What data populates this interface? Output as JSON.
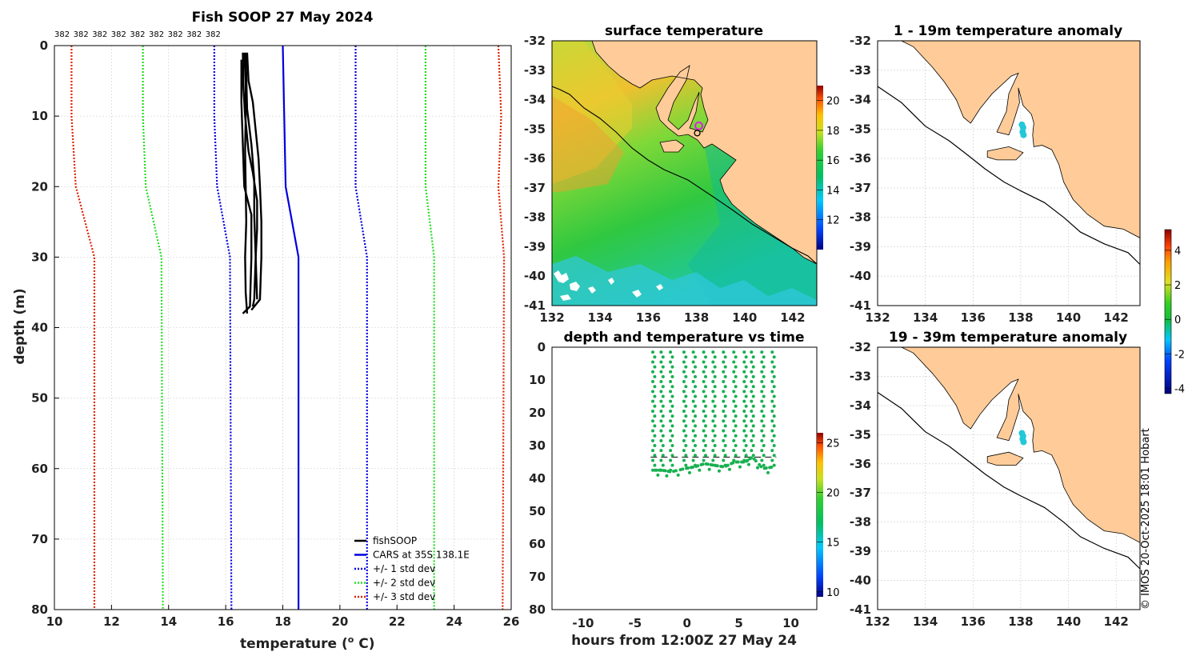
{
  "chart_data": [
    {
      "id": "profile",
      "type": "line",
      "title": "Fish SOOP 27 May 2024",
      "xlabel": "temperature (",
      "xlabel_sup": "o",
      "xlabel_end": " C)",
      "ylabel": "depth (m)",
      "xlim": [
        10,
        26
      ],
      "ylim": [
        0,
        80
      ],
      "xticks": [
        10,
        12,
        14,
        16,
        18,
        20,
        22,
        24,
        26
      ],
      "yticks": [
        0,
        10,
        20,
        30,
        40,
        50,
        60,
        70,
        80
      ],
      "top_labels": [
        "382",
        "382",
        "382",
        "382",
        "382",
        "382",
        "382",
        "382",
        "382"
      ],
      "legend": {
        "position": "bottom-right",
        "entries": [
          {
            "label": "fishSOOP",
            "color": "#000000",
            "style": "solid"
          },
          {
            "label": "CARS at 35S 138.1E",
            "color": "#0000dd",
            "style": "solid"
          },
          {
            "label": "+/- 1 std dev",
            "color": "#0000dd",
            "style": "dotted"
          },
          {
            "label": "+/- 2 std dev",
            "color": "#22dd22",
            "style": "dotted"
          },
          {
            "label": "+/- 3 std dev",
            "color": "#dd2200",
            "style": "dotted"
          }
        ]
      },
      "series": [
        {
          "name": "CARS mean",
          "color": "#0000dd",
          "dash": "",
          "depth": [
            0,
            10,
            20,
            30,
            80
          ],
          "temp": [
            18.0,
            18.05,
            18.1,
            18.55,
            18.55
          ]
        },
        {
          "name": "-1 std",
          "color": "#0000dd",
          "dash": "2,2",
          "depth": [
            0,
            10,
            20,
            30,
            80
          ],
          "temp": [
            15.6,
            15.6,
            15.7,
            16.15,
            16.2
          ]
        },
        {
          "name": "+1 std",
          "color": "#0000dd",
          "dash": "2,2",
          "depth": [
            0,
            10,
            20,
            30,
            80
          ],
          "temp": [
            20.55,
            20.55,
            20.55,
            20.95,
            20.95
          ]
        },
        {
          "name": "-2 std",
          "color": "#22dd22",
          "dash": "2,2",
          "depth": [
            0,
            10,
            20,
            30,
            80
          ],
          "temp": [
            13.1,
            13.1,
            13.2,
            13.75,
            13.8
          ]
        },
        {
          "name": "+2 std",
          "color": "#22dd22",
          "dash": "2,2",
          "depth": [
            0,
            10,
            20,
            30,
            80
          ],
          "temp": [
            23.0,
            23.0,
            23.0,
            23.3,
            23.3
          ]
        },
        {
          "name": "-3 std",
          "color": "#dd2200",
          "dash": "2,2",
          "depth": [
            0,
            10,
            20,
            30,
            80
          ],
          "temp": [
            10.6,
            10.6,
            10.75,
            11.4,
            11.4
          ]
        },
        {
          "name": "+3 std",
          "color": "#dd2200",
          "dash": "2,2",
          "depth": [
            0,
            10,
            20,
            30,
            80
          ],
          "temp": [
            25.55,
            25.65,
            25.55,
            25.75,
            25.7
          ]
        },
        {
          "name": "fishSOOP 1",
          "color": "#000000",
          "width": 2.4,
          "dash": "",
          "depth": [
            1,
            5,
            10,
            15,
            20,
            25,
            30,
            35,
            38
          ],
          "temp": [
            16.65,
            16.7,
            16.7,
            16.68,
            16.7,
            16.72,
            16.68,
            16.7,
            16.75
          ]
        },
        {
          "name": "fishSOOP 2",
          "color": "#000000",
          "width": 2.4,
          "dash": "",
          "depth": [
            1,
            5,
            8,
            12,
            16,
            20,
            25,
            30,
            36,
            37.5
          ],
          "temp": [
            16.75,
            16.8,
            16.95,
            17.05,
            17.15,
            17.2,
            17.25,
            17.25,
            17.2,
            16.9
          ]
        },
        {
          "name": "fishSOOP 3",
          "color": "#000000",
          "width": 2.4,
          "dash": "",
          "depth": [
            1,
            6,
            10,
            15,
            18,
            22,
            26,
            30,
            36,
            37
          ],
          "temp": [
            16.6,
            16.62,
            16.68,
            16.8,
            16.95,
            17.1,
            17.1,
            17.05,
            17.0,
            16.95
          ]
        },
        {
          "name": "fishSOOP 4",
          "color": "#000000",
          "width": 2.4,
          "dash": "",
          "depth": [
            2,
            8,
            14,
            20,
            24,
            30,
            37,
            38
          ],
          "temp": [
            16.55,
            16.55,
            16.6,
            16.65,
            16.9,
            16.9,
            16.85,
            16.6
          ]
        },
        {
          "name": "fishSOOP 5",
          "color": "#000000",
          "width": 2.4,
          "dash": "",
          "depth": [
            1,
            9,
            14,
            19,
            24,
            30,
            36
          ],
          "temp": [
            16.7,
            16.75,
            16.9,
            17.0,
            17.0,
            17.05,
            17.1
          ]
        }
      ]
    },
    {
      "id": "sst",
      "type": "heatmap",
      "title": "surface temperature",
      "xlim": [
        132,
        143
      ],
      "ylim": [
        -41,
        -32
      ],
      "xticks": [
        132,
        134,
        136,
        138,
        140,
        142
      ],
      "yticks": [
        -32,
        -33,
        -34,
        -35,
        -36,
        -37,
        -38,
        -39,
        -40,
        -41
      ],
      "colorbar": {
        "min": 10,
        "max": 21,
        "ticks": [
          12,
          14,
          16,
          18,
          20
        ]
      },
      "marker_lon": 138.1,
      "marker_lat": -35.0
    },
    {
      "id": "timeseries",
      "type": "scatter",
      "title": "depth and temperature vs time",
      "xlabel": "hours from 12:00Z 27 May 24",
      "xlim": [
        -13,
        12.5
      ],
      "ylim": [
        0,
        80
      ],
      "xticks": [
        -10,
        -5,
        0,
        5,
        10
      ],
      "yticks": [
        0,
        10,
        20,
        30,
        40,
        50,
        60,
        70,
        80
      ],
      "colorbar": {
        "min": 9.5,
        "max": 26,
        "ticks": [
          10,
          15,
          20,
          25
        ]
      },
      "casts_hours": [
        -3.2,
        -2.4,
        -1.5,
        -0.2,
        0.7,
        1.7,
        2.6,
        3.6,
        4.6,
        5.6,
        6.3,
        7.3,
        8.3
      ],
      "casts_bottom": [
        37.5,
        37.5,
        38.0,
        37.0,
        36.5,
        35.5,
        36.0,
        36.5,
        35.0,
        35.0,
        33.5,
        37.0,
        36.5
      ],
      "bottom_dash_depth": 33.5
    },
    {
      "id": "anom1",
      "type": "heatmap",
      "title": "1 - 19m temperature anomaly",
      "xlim": [
        132,
        143
      ],
      "ylim": [
        -41,
        -32
      ],
      "xticks": [
        132,
        134,
        136,
        138,
        140,
        142
      ],
      "yticks": [
        -32,
        -33,
        -34,
        -35,
        -36,
        -37,
        -38,
        -39,
        -40,
        -41
      ],
      "points": [
        {
          "lon": 138.05,
          "lat": -34.85
        },
        {
          "lon": 138.1,
          "lat": -34.95
        },
        {
          "lon": 138.08,
          "lat": -35.1
        },
        {
          "lon": 138.12,
          "lat": -35.2
        }
      ],
      "point_color": "#22c8d8"
    },
    {
      "id": "anom2",
      "type": "heatmap",
      "title": "19 - 39m temperature anomaly",
      "xlim": [
        132,
        143
      ],
      "ylim": [
        -41,
        -32
      ],
      "xticks": [
        132,
        134,
        136,
        138,
        140,
        142
      ],
      "yticks": [
        -32,
        -33,
        -34,
        -35,
        -36,
        -37,
        -38,
        -39,
        -40,
        -41
      ],
      "points": [
        {
          "lon": 138.05,
          "lat": -34.95
        },
        {
          "lon": 138.1,
          "lat": -35.05
        },
        {
          "lon": 138.08,
          "lat": -35.15
        },
        {
          "lon": 138.12,
          "lat": -35.25
        }
      ],
      "point_color": "#22c8d8",
      "colorbar": {
        "min": -4.3,
        "max": 5.2,
        "ticks": [
          -4,
          -2,
          0,
          2,
          4
        ]
      }
    }
  ],
  "credit": "© IMOS 20-Oct-2025 18:01 Hobart",
  "colors": {
    "land": "#ffcc99",
    "grid": "#cccccc"
  }
}
